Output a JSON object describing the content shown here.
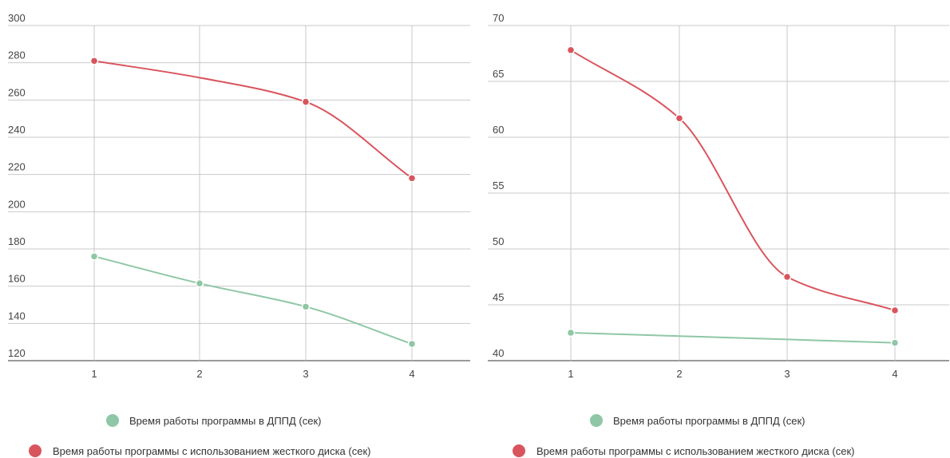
{
  "chart_data": [
    {
      "type": "line",
      "title": "",
      "xlabel": "",
      "ylabel": "",
      "x": [
        1,
        2,
        3,
        4
      ],
      "x_tick_labels": [
        "1",
        "2",
        "3",
        "4"
      ],
      "ylim": [
        120,
        300
      ],
      "y_ticks": [
        120,
        140,
        160,
        180,
        200,
        220,
        240,
        260,
        280,
        300
      ],
      "y_tick_labels": [
        "120",
        "140",
        "160",
        "180",
        "200",
        "220",
        "240",
        "260",
        "280",
        "300"
      ],
      "grid": true,
      "legend_position": "bottom",
      "series": [
        {
          "name": "Время работы программы в ДППД (сек)",
          "color": "#8fc7a6",
          "values": [
            176,
            161.5,
            149,
            129
          ],
          "marker_at": [
            0,
            1,
            2,
            3
          ],
          "smooth": true
        },
        {
          "name": "Время работы программы с использованием жесткого диска (сек)",
          "color": "#d9555d",
          "values": [
            281,
            null,
            259,
            218
          ],
          "line_values": [
            281,
            272,
            259,
            218
          ],
          "marker_at": [
            0,
            2,
            3
          ],
          "smooth": true
        }
      ]
    },
    {
      "type": "line",
      "title": "",
      "xlabel": "",
      "ylabel": "",
      "x": [
        1,
        2,
        3,
        4
      ],
      "x_tick_labels": [
        "1",
        "2",
        "3",
        "4"
      ],
      "ylim": [
        40,
        70
      ],
      "y_ticks": [
        40,
        45,
        50,
        55,
        60,
        65,
        70
      ],
      "y_tick_labels": [
        "40",
        "45",
        "50",
        "55",
        "60",
        "65",
        "70"
      ],
      "grid": true,
      "legend_position": "bottom",
      "series": [
        {
          "name": "Время работы программы в ДППД (сек)",
          "color": "#8fc7a6",
          "values": [
            42.5,
            null,
            null,
            41.6
          ],
          "line_values": [
            42.5,
            42.2,
            41.9,
            41.6
          ],
          "marker_at": [
            0,
            3
          ],
          "smooth": true
        },
        {
          "name": "Время работы программы с использованием жесткого диска (сек)",
          "color": "#d9555d",
          "values": [
            67.8,
            61.7,
            47.5,
            44.5
          ],
          "marker_at": [
            0,
            1,
            2,
            3
          ],
          "smooth": true
        }
      ]
    }
  ]
}
